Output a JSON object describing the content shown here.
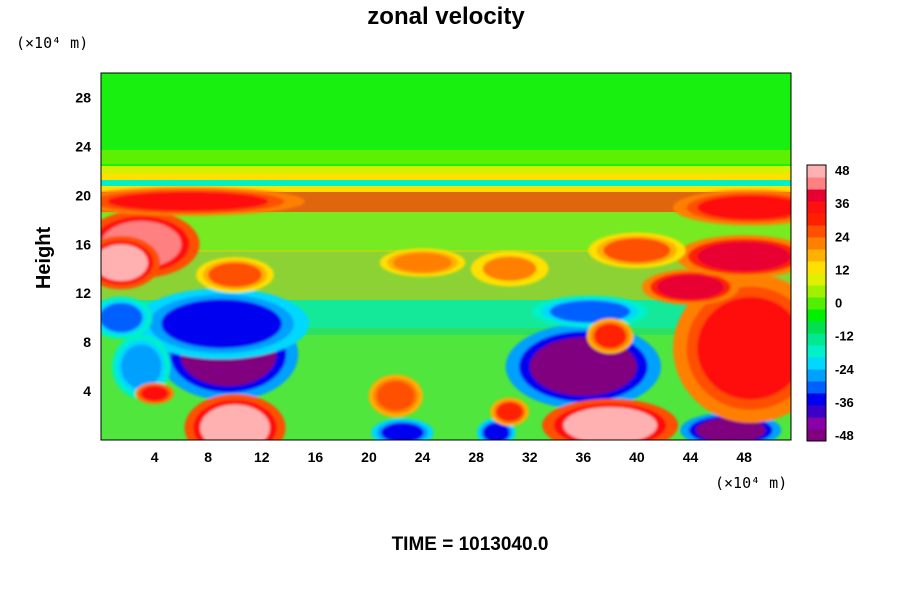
{
  "chart_data": {
    "type": "heatmap",
    "title": "zonal velocity",
    "ylabel": "Height",
    "x_unit": "(×10⁴ m)",
    "y_unit": "(×10⁴ m)",
    "xlim": [
      0,
      51.5
    ],
    "ylim": [
      0,
      30
    ],
    "x_ticks": [
      4,
      8,
      12,
      16,
      20,
      24,
      28,
      32,
      36,
      40,
      44,
      48
    ],
    "y_ticks": [
      4,
      8,
      12,
      16,
      20,
      24,
      28
    ],
    "colorbar": {
      "min": -48,
      "max": 48,
      "ticks": [
        48,
        36,
        24,
        12,
        0,
        -12,
        -24,
        -36,
        -48
      ],
      "colors": [
        "#800080",
        "#8a00a8",
        "#3a00c8",
        "#0000f0",
        "#0060ff",
        "#00a0ff",
        "#00d8ff",
        "#00f0c8",
        "#00e890",
        "#00e050",
        "#00f000",
        "#50f000",
        "#a0f000",
        "#e0f000",
        "#ffe000",
        "#ffb000",
        "#ff8000",
        "#ff5000",
        "#ff2000",
        "#ff1010",
        "#e80030",
        "#ff8080",
        "#ffb0b0"
      ]
    },
    "field_features": [
      {
        "x": 9.5,
        "y": 7.0,
        "rx": 3.6,
        "ry": 2.6,
        "value": -48
      },
      {
        "x": 36.0,
        "y": 6.0,
        "rx": 4.0,
        "ry": 2.4,
        "value": -48
      },
      {
        "x": 9.0,
        "y": 9.5,
        "rx": 4.5,
        "ry": 2.0,
        "value": -36
      },
      {
        "x": 1.5,
        "y": 10.0,
        "rx": 1.6,
        "ry": 1.2,
        "value": -30
      },
      {
        "x": 3.0,
        "y": 6.0,
        "rx": 1.5,
        "ry": 1.8,
        "value": -28
      },
      {
        "x": 48.5,
        "y": 10.2,
        "rx": 2.5,
        "ry": 0.8,
        "value": -36
      },
      {
        "x": 36.5,
        "y": 10.5,
        "rx": 3.0,
        "ry": 0.9,
        "value": -30
      },
      {
        "x": 22.5,
        "y": 0.6,
        "rx": 1.6,
        "ry": 0.8,
        "value": -36
      },
      {
        "x": 29.5,
        "y": 0.6,
        "rx": 1.0,
        "ry": 0.8,
        "value": -36
      },
      {
        "x": 47.0,
        "y": 0.8,
        "rx": 2.6,
        "ry": 1.0,
        "value": -48
      },
      {
        "x": 3.0,
        "y": 16.0,
        "rx": 3.0,
        "ry": 1.9,
        "value": 44
      },
      {
        "x": 1.5,
        "y": 14.5,
        "rx": 2.0,
        "ry": 1.5,
        "value": 48
      },
      {
        "x": 10.0,
        "y": 1.0,
        "rx": 2.6,
        "ry": 1.9,
        "value": 48
      },
      {
        "x": 38.0,
        "y": 1.2,
        "rx": 3.5,
        "ry": 1.5,
        "value": 48
      },
      {
        "x": 49.0,
        "y": 6.5,
        "rx": 3.0,
        "ry": 3.2,
        "value": 48
      },
      {
        "x": 48.5,
        "y": 7.5,
        "rx": 4.0,
        "ry": 4.2,
        "value": 36
      },
      {
        "x": 44.0,
        "y": 12.5,
        "rx": 2.5,
        "ry": 1.0,
        "value": 38
      },
      {
        "x": 48.0,
        "y": 15.0,
        "rx": 3.5,
        "ry": 1.2,
        "value": 40
      },
      {
        "x": 48.5,
        "y": 19.0,
        "rx": 4.0,
        "ry": 1.0,
        "value": 36
      },
      {
        "x": 6.5,
        "y": 19.5,
        "rx": 6.0,
        "ry": 0.8,
        "value": 36
      },
      {
        "x": 10.0,
        "y": 13.5,
        "rx": 2.0,
        "ry": 1.0,
        "value": 26
      },
      {
        "x": 4.0,
        "y": 3.8,
        "rx": 1.0,
        "ry": 0.6,
        "value": 36
      },
      {
        "x": 22.0,
        "y": 3.6,
        "rx": 1.4,
        "ry": 1.2,
        "value": 28
      },
      {
        "x": 30.5,
        "y": 2.3,
        "rx": 1.0,
        "ry": 0.8,
        "value": 30
      },
      {
        "x": 24.0,
        "y": 14.5,
        "rx": 2.2,
        "ry": 0.8,
        "value": 22
      },
      {
        "x": 30.5,
        "y": 14.0,
        "rx": 2.0,
        "ry": 1.0,
        "value": 20
      },
      {
        "x": 40.0,
        "y": 15.5,
        "rx": 2.5,
        "ry": 1.0,
        "value": 26
      },
      {
        "x": 38.0,
        "y": 8.5,
        "rx": 1.2,
        "ry": 1.0,
        "value": 30
      }
    ],
    "time_label": "TIME = 1013040.0"
  }
}
